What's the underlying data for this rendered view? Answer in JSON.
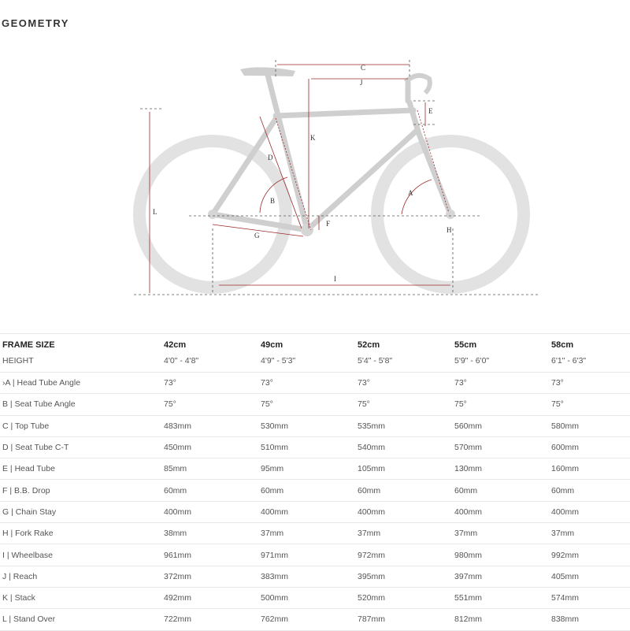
{
  "title": "GEOMETRY",
  "diagram": {
    "labels": [
      "A",
      "B",
      "C",
      "D",
      "E",
      "F",
      "G",
      "H",
      "I",
      "J",
      "K",
      "L"
    ],
    "frame_color": "#d0d0d0",
    "dimension_color": "#9b2a2a"
  },
  "table": {
    "header": [
      "FRAME SIZE",
      "42cm",
      "49cm",
      "52cm",
      "55cm",
      "58cm"
    ],
    "height": [
      "HEIGHT",
      "4'0\" - 4'8\"",
      "4'9\" - 5'3\"",
      "5'4\" - 5'8\"",
      "5'9\" - 6'0\"",
      "6'1\" - 6'3\""
    ],
    "rows": [
      [
        "›A | Head Tube Angle",
        "73°",
        "73°",
        "73°",
        "73°",
        "73°"
      ],
      [
        "B | Seat Tube Angle",
        "75°",
        "75°",
        "75°",
        "75°",
        "75°"
      ],
      [
        "C | Top Tube",
        "483mm",
        "530mm",
        "535mm",
        "560mm",
        "580mm"
      ],
      [
        "D | Seat Tube C-T",
        "450mm",
        "510mm",
        "540mm",
        "570mm",
        "600mm"
      ],
      [
        "E | Head Tube",
        "85mm",
        "95mm",
        "105mm",
        "130mm",
        "160mm"
      ],
      [
        "F | B.B. Drop",
        "60mm",
        "60mm",
        "60mm",
        "60mm",
        "60mm"
      ],
      [
        "G | Chain Stay",
        "400mm",
        "400mm",
        "400mm",
        "400mm",
        "400mm"
      ],
      [
        "H | Fork Rake",
        "38mm",
        "37mm",
        "37mm",
        "37mm",
        "37mm"
      ],
      [
        "I | Wheelbase",
        "961mm",
        "971mm",
        "972mm",
        "980mm",
        "992mm"
      ],
      [
        "J | Reach",
        "372mm",
        "383mm",
        "395mm",
        "397mm",
        "405mm"
      ],
      [
        "K | Stack",
        "492mm",
        "500mm",
        "520mm",
        "551mm",
        "574mm"
      ],
      [
        "L | Stand Over",
        "722mm",
        "762mm",
        "787mm",
        "812mm",
        "838mm"
      ]
    ]
  }
}
